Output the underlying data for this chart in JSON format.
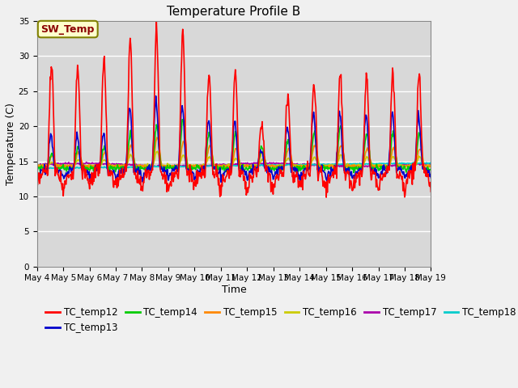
{
  "title": "Temperature Profile B",
  "xlabel": "Time",
  "ylabel": "Temperature (C)",
  "ylim": [
    0,
    35
  ],
  "yticks": [
    0,
    5,
    10,
    15,
    20,
    25,
    30,
    35
  ],
  "x_tick_labels": [
    "May 4",
    "May 5",
    "May 6",
    "May 7",
    "May 8",
    "May 9",
    "May 10",
    "May 11",
    "May 12",
    "May 13",
    "May 14",
    "May 15",
    "May 16",
    "May 17",
    "May 18",
    "May 19"
  ],
  "SW_Temp_annotation": "SW_Temp",
  "series_colors": {
    "TC_temp12": "#ff0000",
    "TC_temp13": "#0000cc",
    "TC_temp14": "#00cc00",
    "TC_temp15": "#ff8800",
    "TC_temp16": "#cccc00",
    "TC_temp17": "#aa00aa",
    "TC_temp18": "#00cccc"
  },
  "plot_bg_color": "#d8d8d8",
  "fig_bg_color": "#f0f0f0",
  "grid_color": "#ffffff",
  "title_fontsize": 11,
  "axis_label_fontsize": 9,
  "tick_fontsize": 7.5,
  "legend_fontsize": 8.5
}
